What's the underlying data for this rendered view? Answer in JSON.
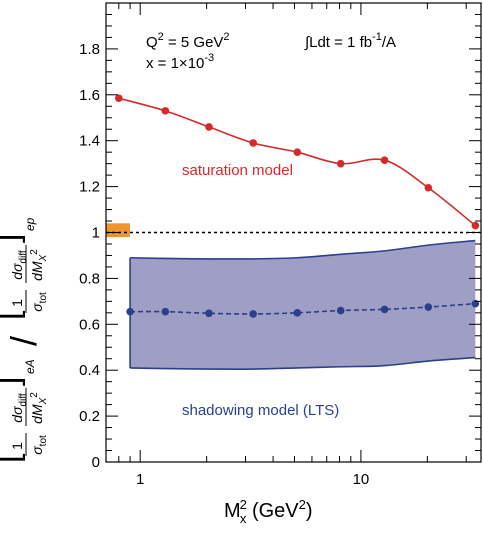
{
  "chart_data": {
    "type": "line",
    "xscale": "log",
    "xlim": [
      0.7,
      35
    ],
    "ylim": [
      0,
      2.0
    ],
    "x_tick_labels": [
      {
        "value": 1,
        "label": "1"
      },
      {
        "value": 10,
        "label": "10"
      }
    ],
    "y_tick_labels": [
      {
        "value": 0,
        "label": "0"
      },
      {
        "value": 0.2,
        "label": "0.2"
      },
      {
        "value": 0.4,
        "label": "0.4"
      },
      {
        "value": 0.6,
        "label": "0.6"
      },
      {
        "value": 0.8,
        "label": "0.8"
      },
      {
        "value": 1.0,
        "label": "1"
      },
      {
        "value": 1.2,
        "label": "1.2"
      },
      {
        "value": 1.4,
        "label": "1.4"
      },
      {
        "value": 1.6,
        "label": "1.6"
      },
      {
        "value": 1.8,
        "label": "1.8"
      }
    ],
    "xlabel_main": "M",
    "xlabel_sup": "2",
    "xlabel_sub": "x",
    "xlabel_rest": " (GeV",
    "xlabel_sup2": "2",
    "xlabel_end": ")",
    "ylabel_ea": "eA",
    "ylabel_ep": "ep",
    "ylabel_sigma_tot": "σ",
    "ylabel_tot": "tot",
    "ylabel_d_sigma": "dσ",
    "ylabel_diff": "diff",
    "ylabel_dM": "dM",
    "ylabel_X": "X",
    "ylabel_one": "1",
    "annotations": {
      "q2_prefix": "Q",
      "q2_sup": "2",
      "q2_suffix": " = 5 GeV",
      "q2_sup2": "2",
      "x_value": "x = 1×10",
      "x_exp": "-3",
      "lumi": "∫Ldt = 1 fb",
      "lumi_exp": "-1",
      "lumi_unit": "/A",
      "saturation_label": "saturation model",
      "shadowing_label": "shadowing model (LTS)"
    },
    "series": [
      {
        "name": "saturation model",
        "color": "#d42a2a",
        "style": "solid",
        "x": [
          0.8,
          1.3,
          2.05,
          3.25,
          5.15,
          8.1,
          12.8,
          20.2,
          33.0
        ],
        "y": [
          1.585,
          1.53,
          1.46,
          1.39,
          1.35,
          1.3,
          1.315,
          1.195,
          1.03
        ]
      },
      {
        "name": "shadowing model (LTS)",
        "color": "#2b3f8c",
        "style": "dashed",
        "x": [
          0.9,
          1.3,
          2.05,
          3.25,
          5.15,
          8.1,
          12.8,
          20.2,
          33.0
        ],
        "y": [
          0.655,
          0.655,
          0.648,
          0.645,
          0.65,
          0.66,
          0.665,
          0.675,
          0.69
        ]
      }
    ],
    "band": {
      "name": "shadowing model (LTS) uncertainty band",
      "fill": "#9f9fc6",
      "edge": "#2b3f8c",
      "x": [
        0.9,
        1.3,
        2.05,
        3.25,
        5.15,
        8.1,
        12.8,
        20.2,
        33.0
      ],
      "upper": [
        0.89,
        0.887,
        0.885,
        0.885,
        0.89,
        0.905,
        0.92,
        0.945,
        0.965
      ],
      "lower": [
        0.41,
        0.407,
        0.405,
        0.405,
        0.41,
        0.415,
        0.42,
        0.44,
        0.455
      ]
    },
    "reference_line": {
      "y": 1.0,
      "style": "dotted",
      "color": "#000000"
    },
    "normalization_box": {
      "y_low": 0.98,
      "y_high": 1.04,
      "color": "#f0952b"
    }
  }
}
